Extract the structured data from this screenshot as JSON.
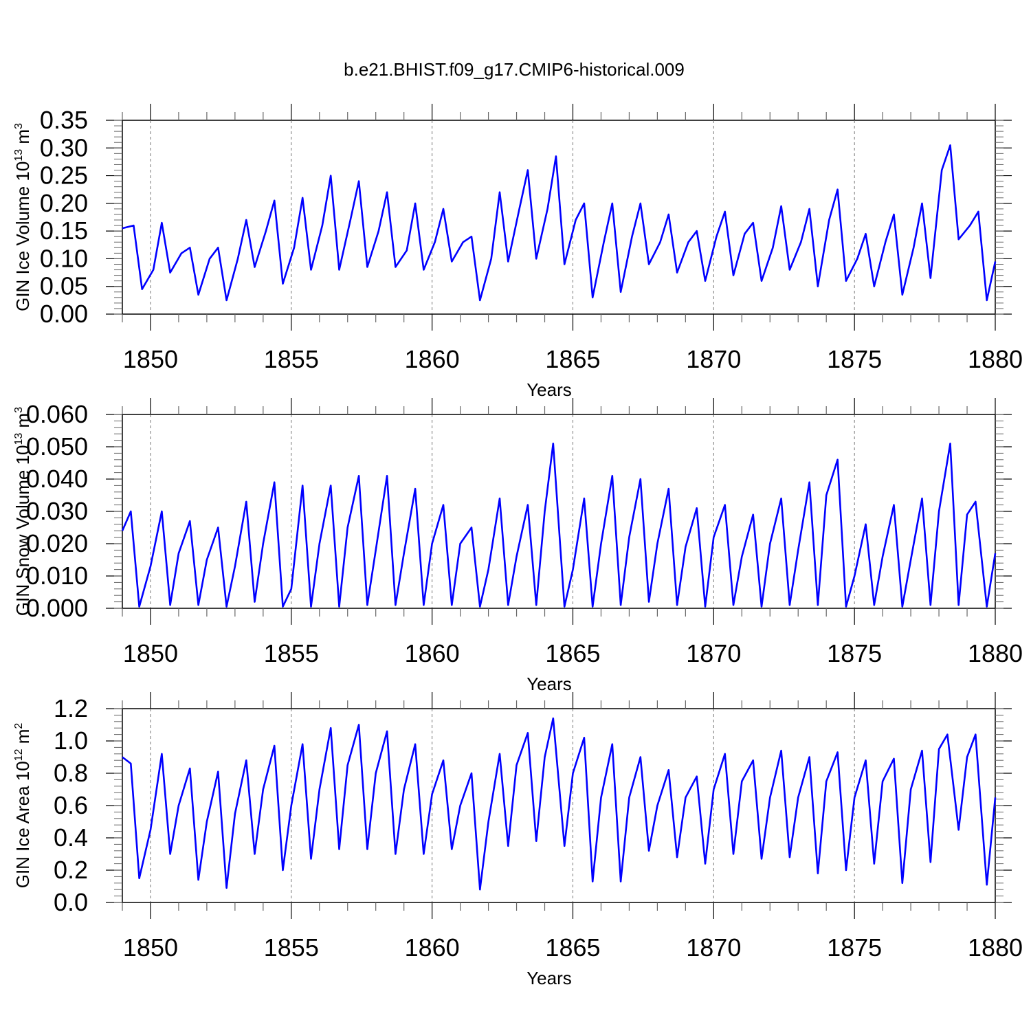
{
  "title": "b.e21.BHIST.f09_g17.CMIP6-historical.009",
  "chart_data": [
    {
      "type": "line",
      "ylabel": "GIN Ice Volume 10",
      "ylabel_exp": "13",
      "ylabel_unit": " m",
      "ylabel_unit_exp": "3",
      "xlabel": "Years",
      "xlim": [
        1849,
        1880
      ],
      "ylim": [
        0,
        0.35
      ],
      "yticks": [
        "0.00",
        "0.05",
        "0.10",
        "0.15",
        "0.20",
        "0.25",
        "0.30",
        "0.35"
      ],
      "ytick_values": [
        0,
        0.05,
        0.1,
        0.15,
        0.2,
        0.25,
        0.3,
        0.35
      ],
      "xticks": [
        "1850",
        "1855",
        "1860",
        "1865",
        "1870",
        "1875",
        "1880"
      ],
      "xtick_values": [
        1850,
        1855,
        1860,
        1865,
        1870,
        1875,
        1880
      ],
      "series": [
        {
          "name": "GIN Ice Volume",
          "color": "#0000ff",
          "x": [
            1849.0,
            1849.4,
            1849.7,
            1850.1,
            1850.4,
            1850.7,
            1851.1,
            1851.4,
            1851.7,
            1852.1,
            1852.4,
            1852.7,
            1853.1,
            1853.4,
            1853.7,
            1854.1,
            1854.4,
            1854.7,
            1855.1,
            1855.4,
            1855.7,
            1856.1,
            1856.4,
            1856.7,
            1857.1,
            1857.4,
            1857.7,
            1858.1,
            1858.4,
            1858.7,
            1859.1,
            1859.4,
            1859.7,
            1860.1,
            1860.4,
            1860.7,
            1861.1,
            1861.4,
            1861.7,
            1862.1,
            1862.4,
            1862.7,
            1863.1,
            1863.4,
            1863.7,
            1864.1,
            1864.4,
            1864.7,
            1865.1,
            1865.4,
            1865.7,
            1866.1,
            1866.4,
            1866.7,
            1867.1,
            1867.4,
            1867.7,
            1868.1,
            1868.4,
            1868.7,
            1869.1,
            1869.4,
            1869.7,
            1870.1,
            1870.4,
            1870.7,
            1871.1,
            1871.4,
            1871.7,
            1872.1,
            1872.4,
            1872.7,
            1873.1,
            1873.4,
            1873.7,
            1874.1,
            1874.4,
            1874.7,
            1875.1,
            1875.4,
            1875.7,
            1876.1,
            1876.4,
            1876.7,
            1877.1,
            1877.4,
            1877.7,
            1878.1,
            1878.4,
            1878.7,
            1879.1,
            1879.4,
            1879.7,
            1880.0
          ],
          "y": [
            0.155,
            0.16,
            0.045,
            0.08,
            0.165,
            0.075,
            0.11,
            0.12,
            0.035,
            0.1,
            0.12,
            0.025,
            0.1,
            0.17,
            0.085,
            0.15,
            0.205,
            0.055,
            0.12,
            0.21,
            0.08,
            0.16,
            0.25,
            0.08,
            0.17,
            0.24,
            0.085,
            0.15,
            0.22,
            0.085,
            0.115,
            0.2,
            0.08,
            0.13,
            0.19,
            0.095,
            0.13,
            0.14,
            0.025,
            0.1,
            0.22,
            0.095,
            0.19,
            0.26,
            0.1,
            0.19,
            0.285,
            0.09,
            0.17,
            0.2,
            0.03,
            0.13,
            0.2,
            0.04,
            0.14,
            0.2,
            0.09,
            0.13,
            0.18,
            0.075,
            0.13,
            0.15,
            0.06,
            0.14,
            0.185,
            0.07,
            0.145,
            0.165,
            0.06,
            0.12,
            0.195,
            0.08,
            0.13,
            0.19,
            0.05,
            0.17,
            0.225,
            0.06,
            0.1,
            0.145,
            0.05,
            0.13,
            0.18,
            0.035,
            0.12,
            0.2,
            0.065,
            0.26,
            0.305,
            0.135,
            0.16,
            0.185,
            0.025,
            0.095
          ]
        }
      ]
    },
    {
      "type": "line",
      "ylabel": "GIN Snow Volume 10",
      "ylabel_exp": "13",
      "ylabel_unit": " m",
      "ylabel_unit_exp": "3",
      "xlabel": "Years",
      "xlim": [
        1849,
        1880
      ],
      "ylim": [
        0,
        0.06
      ],
      "yticks": [
        "0.000",
        "0.010",
        "0.020",
        "0.030",
        "0.040",
        "0.050",
        "0.060"
      ],
      "ytick_values": [
        0,
        0.01,
        0.02,
        0.03,
        0.04,
        0.05,
        0.06
      ],
      "xticks": [
        "1850",
        "1855",
        "1860",
        "1865",
        "1870",
        "1875",
        "1880"
      ],
      "xtick_values": [
        1850,
        1855,
        1860,
        1865,
        1870,
        1875,
        1880
      ],
      "series": [
        {
          "name": "GIN Snow Volume",
          "color": "#0000ff",
          "x": [
            1849.0,
            1849.3,
            1849.6,
            1850.0,
            1850.4,
            1850.7,
            1851.0,
            1851.4,
            1851.7,
            1852.0,
            1852.4,
            1852.7,
            1853.0,
            1853.4,
            1853.7,
            1854.0,
            1854.4,
            1854.7,
            1855.0,
            1855.4,
            1855.7,
            1856.0,
            1856.4,
            1856.7,
            1857.0,
            1857.4,
            1857.7,
            1858.0,
            1858.4,
            1858.7,
            1859.0,
            1859.4,
            1859.7,
            1860.0,
            1860.4,
            1860.7,
            1861.0,
            1861.4,
            1861.7,
            1862.0,
            1862.4,
            1862.7,
            1863.0,
            1863.4,
            1863.7,
            1864.0,
            1864.3,
            1864.7,
            1865.0,
            1865.4,
            1865.7,
            1866.0,
            1866.4,
            1866.7,
            1867.0,
            1867.4,
            1867.7,
            1868.0,
            1868.4,
            1868.7,
            1869.0,
            1869.4,
            1869.7,
            1870.0,
            1870.4,
            1870.7,
            1871.0,
            1871.4,
            1871.7,
            1872.0,
            1872.4,
            1872.7,
            1873.0,
            1873.4,
            1873.7,
            1874.0,
            1874.4,
            1874.7,
            1875.0,
            1875.4,
            1875.7,
            1876.0,
            1876.4,
            1876.7,
            1877.0,
            1877.4,
            1877.7,
            1878.0,
            1878.4,
            1878.7,
            1879.0,
            1879.3,
            1879.7,
            1880.0
          ],
          "y": [
            0.024,
            0.03,
            0.0005,
            0.013,
            0.03,
            0.001,
            0.017,
            0.027,
            0.001,
            0.015,
            0.025,
            0.0005,
            0.013,
            0.033,
            0.002,
            0.02,
            0.039,
            0.0005,
            0.006,
            0.038,
            0.0005,
            0.02,
            0.038,
            0.0005,
            0.025,
            0.041,
            0.001,
            0.018,
            0.041,
            0.001,
            0.017,
            0.037,
            0.001,
            0.02,
            0.032,
            0.001,
            0.02,
            0.025,
            0.0005,
            0.012,
            0.034,
            0.001,
            0.016,
            0.032,
            0.001,
            0.03,
            0.051,
            0.0005,
            0.012,
            0.034,
            0.0005,
            0.02,
            0.041,
            0.001,
            0.022,
            0.04,
            0.002,
            0.02,
            0.037,
            0.001,
            0.019,
            0.031,
            0.0005,
            0.022,
            0.032,
            0.001,
            0.016,
            0.029,
            0.0005,
            0.02,
            0.034,
            0.001,
            0.018,
            0.039,
            0.001,
            0.035,
            0.046,
            0.0005,
            0.01,
            0.026,
            0.001,
            0.016,
            0.032,
            0.0005,
            0.015,
            0.034,
            0.001,
            0.03,
            0.051,
            0.001,
            0.029,
            0.033,
            0.0005,
            0.017
          ]
        }
      ]
    },
    {
      "type": "line",
      "ylabel": "GIN Ice Area 10",
      "ylabel_exp": "12",
      "ylabel_unit": " m",
      "ylabel_unit_exp": "2",
      "xlabel": "Years",
      "xlim": [
        1849,
        1880
      ],
      "ylim": [
        0,
        1.2
      ],
      "yticks": [
        "0.0",
        "0.2",
        "0.4",
        "0.6",
        "0.8",
        "1.0",
        "1.2"
      ],
      "ytick_values": [
        0,
        0.2,
        0.4,
        0.6,
        0.8,
        1.0,
        1.2
      ],
      "xticks": [
        "1850",
        "1855",
        "1860",
        "1865",
        "1870",
        "1875",
        "1880"
      ],
      "xtick_values": [
        1850,
        1855,
        1860,
        1865,
        1870,
        1875,
        1880
      ],
      "series": [
        {
          "name": "GIN Ice Area",
          "color": "#0000ff",
          "x": [
            1849.0,
            1849.3,
            1849.6,
            1850.0,
            1850.4,
            1850.7,
            1851.0,
            1851.4,
            1851.7,
            1852.0,
            1852.4,
            1852.7,
            1853.0,
            1853.4,
            1853.7,
            1854.0,
            1854.4,
            1854.7,
            1855.0,
            1855.4,
            1855.7,
            1856.0,
            1856.4,
            1856.7,
            1857.0,
            1857.4,
            1857.7,
            1858.0,
            1858.4,
            1858.7,
            1859.0,
            1859.4,
            1859.7,
            1860.0,
            1860.4,
            1860.7,
            1861.0,
            1861.4,
            1861.7,
            1862.0,
            1862.4,
            1862.7,
            1863.0,
            1863.4,
            1863.7,
            1864.0,
            1864.3,
            1864.7,
            1865.0,
            1865.4,
            1865.7,
            1866.0,
            1866.4,
            1866.7,
            1867.0,
            1867.4,
            1867.7,
            1868.0,
            1868.4,
            1868.7,
            1869.0,
            1869.4,
            1869.7,
            1870.0,
            1870.4,
            1870.7,
            1871.0,
            1871.4,
            1871.7,
            1872.0,
            1872.4,
            1872.7,
            1873.0,
            1873.4,
            1873.7,
            1874.0,
            1874.4,
            1874.7,
            1875.0,
            1875.4,
            1875.7,
            1876.0,
            1876.4,
            1876.7,
            1877.0,
            1877.4,
            1877.7,
            1878.0,
            1878.3,
            1878.7,
            1879.0,
            1879.3,
            1879.7,
            1880.0
          ],
          "y": [
            0.9,
            0.86,
            0.15,
            0.45,
            0.92,
            0.3,
            0.6,
            0.83,
            0.14,
            0.5,
            0.81,
            0.09,
            0.55,
            0.88,
            0.3,
            0.7,
            0.97,
            0.2,
            0.6,
            0.98,
            0.27,
            0.7,
            1.08,
            0.33,
            0.85,
            1.1,
            0.33,
            0.8,
            1.06,
            0.3,
            0.7,
            0.98,
            0.3,
            0.67,
            0.88,
            0.33,
            0.6,
            0.8,
            0.08,
            0.5,
            0.92,
            0.35,
            0.85,
            1.05,
            0.38,
            0.9,
            1.14,
            0.35,
            0.8,
            1.02,
            0.13,
            0.65,
            0.98,
            0.13,
            0.65,
            0.9,
            0.32,
            0.6,
            0.82,
            0.28,
            0.65,
            0.78,
            0.24,
            0.7,
            0.92,
            0.3,
            0.75,
            0.88,
            0.27,
            0.65,
            0.94,
            0.28,
            0.65,
            0.9,
            0.18,
            0.75,
            0.93,
            0.2,
            0.65,
            0.88,
            0.24,
            0.75,
            0.89,
            0.12,
            0.7,
            0.94,
            0.25,
            0.95,
            1.04,
            0.45,
            0.9,
            1.04,
            0.11,
            0.65
          ]
        }
      ]
    }
  ]
}
